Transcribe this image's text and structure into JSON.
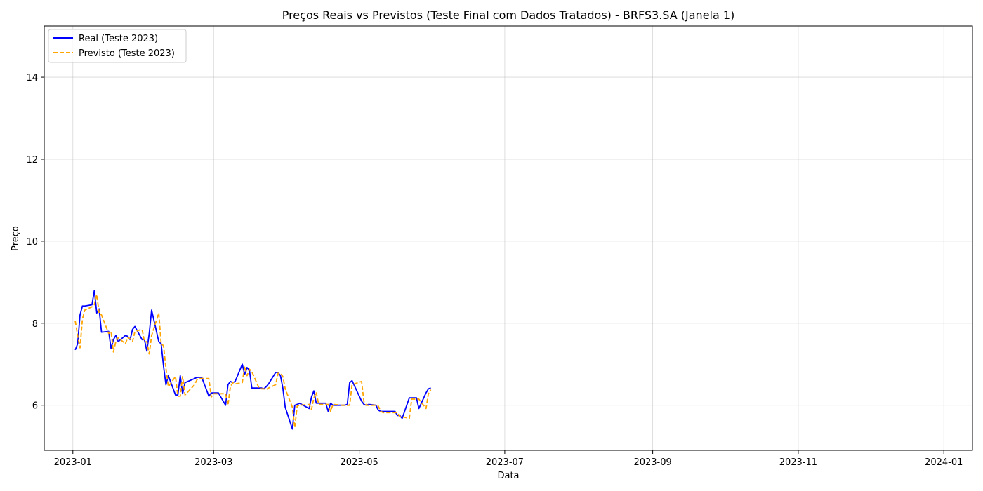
{
  "chart_data": {
    "type": "line",
    "title": "Preços Reais vs Previstos (Teste Final com Dados Tratados) - BRFS3.SA (Janela 1)",
    "xlabel": "Data",
    "ylabel": "Preço",
    "x_ticks": [
      "2023-01",
      "2023-03",
      "2023-05",
      "2023-07",
      "2023-09",
      "2023-11",
      "2024-01"
    ],
    "y_ticks": [
      6,
      8,
      10,
      12,
      14
    ],
    "xlim": [
      "2022-12-20",
      "2024-01-13"
    ],
    "ylim": [
      4.9,
      15.25
    ],
    "grid": true,
    "legend_position": "upper-left",
    "series": [
      {
        "name": "Real (Teste 2023)",
        "color": "#0000ff",
        "style": "solid",
        "points": [
          [
            "2023-01-02",
            7.35
          ],
          [
            "2023-01-03",
            7.5
          ],
          [
            "2023-01-04",
            8.2
          ],
          [
            "2023-01-05",
            8.42
          ],
          [
            "2023-01-06",
            8.42
          ],
          [
            "2023-01-09",
            8.45
          ],
          [
            "2023-01-10",
            8.8
          ],
          [
            "2023-01-11",
            8.25
          ],
          [
            "2023-01-12",
            8.35
          ],
          [
            "2023-01-13",
            7.78
          ],
          [
            "2023-01-16",
            7.8
          ],
          [
            "2023-01-17",
            7.38
          ],
          [
            "2023-01-18",
            7.6
          ],
          [
            "2023-01-19",
            7.7
          ],
          [
            "2023-01-20",
            7.55
          ],
          [
            "2023-01-23",
            7.7
          ],
          [
            "2023-01-24",
            7.68
          ],
          [
            "2023-01-25",
            7.6
          ],
          [
            "2023-01-26",
            7.85
          ],
          [
            "2023-01-27",
            7.92
          ],
          [
            "2023-01-30",
            7.6
          ],
          [
            "2023-01-31",
            7.6
          ],
          [
            "2023-02-01",
            7.32
          ],
          [
            "2023-02-02",
            7.75
          ],
          [
            "2023-02-03",
            8.32
          ],
          [
            "2023-02-06",
            7.55
          ],
          [
            "2023-02-07",
            7.5
          ],
          [
            "2023-02-08",
            6.95
          ],
          [
            "2023-02-09",
            6.5
          ],
          [
            "2023-02-10",
            6.72
          ],
          [
            "2023-02-13",
            6.25
          ],
          [
            "2023-02-14",
            6.25
          ],
          [
            "2023-02-15",
            6.72
          ],
          [
            "2023-02-16",
            6.28
          ],
          [
            "2023-02-17",
            6.55
          ],
          [
            "2023-02-21",
            6.65
          ],
          [
            "2023-02-22",
            6.68
          ],
          [
            "2023-02-23",
            6.68
          ],
          [
            "2023-02-24",
            6.68
          ],
          [
            "2023-02-27",
            6.22
          ],
          [
            "2023-02-28",
            6.3
          ],
          [
            "2023-03-01",
            6.3
          ],
          [
            "2023-03-02",
            6.3
          ],
          [
            "2023-03-03",
            6.3
          ],
          [
            "2023-03-06",
            6.0
          ],
          [
            "2023-03-07",
            6.5
          ],
          [
            "2023-03-08",
            6.58
          ],
          [
            "2023-03-09",
            6.55
          ],
          [
            "2023-03-10",
            6.58
          ],
          [
            "2023-03-13",
            7.0
          ],
          [
            "2023-03-14",
            6.75
          ],
          [
            "2023-03-15",
            6.92
          ],
          [
            "2023-03-16",
            6.85
          ],
          [
            "2023-03-17",
            6.42
          ],
          [
            "2023-03-20",
            6.42
          ],
          [
            "2023-03-21",
            6.42
          ],
          [
            "2023-03-22",
            6.4
          ],
          [
            "2023-03-23",
            6.45
          ],
          [
            "2023-03-24",
            6.52
          ],
          [
            "2023-03-27",
            6.8
          ],
          [
            "2023-03-28",
            6.8
          ],
          [
            "2023-03-29",
            6.72
          ],
          [
            "2023-03-30",
            6.42
          ],
          [
            "2023-03-31",
            5.95
          ],
          [
            "2023-04-03",
            5.42
          ],
          [
            "2023-04-04",
            6.0
          ],
          [
            "2023-04-05",
            6.02
          ],
          [
            "2023-04-06",
            6.05
          ],
          [
            "2023-04-10",
            5.92
          ],
          [
            "2023-04-11",
            6.2
          ],
          [
            "2023-04-12",
            6.35
          ],
          [
            "2023-04-13",
            6.05
          ],
          [
            "2023-04-14",
            6.05
          ],
          [
            "2023-04-17",
            6.05
          ],
          [
            "2023-04-18",
            5.85
          ],
          [
            "2023-04-19",
            6.05
          ],
          [
            "2023-04-20",
            6.0
          ],
          [
            "2023-04-24",
            6.0
          ],
          [
            "2023-04-25",
            6.0
          ],
          [
            "2023-04-26",
            6.02
          ],
          [
            "2023-04-27",
            6.55
          ],
          [
            "2023-04-28",
            6.6
          ],
          [
            "2023-05-02",
            6.1
          ],
          [
            "2023-05-03",
            6.02
          ],
          [
            "2023-05-04",
            6.0
          ],
          [
            "2023-05-05",
            6.02
          ],
          [
            "2023-05-08",
            6.0
          ],
          [
            "2023-05-09",
            5.88
          ],
          [
            "2023-05-10",
            5.85
          ],
          [
            "2023-05-11",
            5.85
          ],
          [
            "2023-05-12",
            5.85
          ],
          [
            "2023-05-15",
            5.85
          ],
          [
            "2023-05-16",
            5.85
          ],
          [
            "2023-05-17",
            5.75
          ],
          [
            "2023-05-18",
            5.75
          ],
          [
            "2023-05-19",
            5.68
          ],
          [
            "2023-05-22",
            6.18
          ],
          [
            "2023-05-23",
            6.18
          ],
          [
            "2023-05-24",
            6.18
          ],
          [
            "2023-05-25",
            6.18
          ],
          [
            "2023-05-26",
            5.92
          ],
          [
            "2023-05-29",
            6.3
          ],
          [
            "2023-05-30",
            6.4
          ],
          [
            "2023-05-31",
            6.42
          ]
        ]
      },
      {
        "name": "Previsto (Teste 2023)",
        "color": "#ffa500",
        "style": "dashed",
        "points": [
          [
            "2023-01-02",
            8.05
          ],
          [
            "2023-01-03",
            7.7
          ],
          [
            "2023-01-04",
            7.4
          ],
          [
            "2023-01-05",
            8.1
          ],
          [
            "2023-01-06",
            8.32
          ],
          [
            "2023-01-09",
            8.4
          ],
          [
            "2023-01-10",
            8.45
          ],
          [
            "2023-01-11",
            8.7
          ],
          [
            "2023-01-12",
            8.25
          ],
          [
            "2023-01-13",
            8.2
          ],
          [
            "2023-01-16",
            7.75
          ],
          [
            "2023-01-17",
            7.8
          ],
          [
            "2023-01-18",
            7.3
          ],
          [
            "2023-01-19",
            7.55
          ],
          [
            "2023-01-20",
            7.65
          ],
          [
            "2023-01-23",
            7.5
          ],
          [
            "2023-01-24",
            7.65
          ],
          [
            "2023-01-25",
            7.62
          ],
          [
            "2023-01-26",
            7.55
          ],
          [
            "2023-01-27",
            7.8
          ],
          [
            "2023-01-30",
            7.85
          ],
          [
            "2023-01-31",
            7.55
          ],
          [
            "2023-02-01",
            7.55
          ],
          [
            "2023-02-02",
            7.25
          ],
          [
            "2023-02-03",
            7.7
          ],
          [
            "2023-02-06",
            8.25
          ],
          [
            "2023-02-07",
            7.5
          ],
          [
            "2023-02-08",
            7.45
          ],
          [
            "2023-02-09",
            6.9
          ],
          [
            "2023-02-10",
            6.45
          ],
          [
            "2023-02-13",
            6.7
          ],
          [
            "2023-02-14",
            6.22
          ],
          [
            "2023-02-15",
            6.22
          ],
          [
            "2023-02-16",
            6.7
          ],
          [
            "2023-02-17",
            6.25
          ],
          [
            "2023-02-21",
            6.5
          ],
          [
            "2023-02-22",
            6.62
          ],
          [
            "2023-02-23",
            6.65
          ],
          [
            "2023-02-24",
            6.65
          ],
          [
            "2023-02-27",
            6.65
          ],
          [
            "2023-02-28",
            6.2
          ],
          [
            "2023-03-01",
            6.28
          ],
          [
            "2023-03-02",
            6.28
          ],
          [
            "2023-03-03",
            6.28
          ],
          [
            "2023-03-06",
            6.28
          ],
          [
            "2023-03-07",
            6.0
          ],
          [
            "2023-03-08",
            6.45
          ],
          [
            "2023-03-09",
            6.55
          ],
          [
            "2023-03-10",
            6.52
          ],
          [
            "2023-03-13",
            6.55
          ],
          [
            "2023-03-14",
            6.95
          ],
          [
            "2023-03-15",
            6.72
          ],
          [
            "2023-03-16",
            6.88
          ],
          [
            "2023-03-17",
            6.82
          ],
          [
            "2023-03-20",
            6.42
          ],
          [
            "2023-03-21",
            6.4
          ],
          [
            "2023-03-22",
            6.4
          ],
          [
            "2023-03-23",
            6.38
          ],
          [
            "2023-03-24",
            6.42
          ],
          [
            "2023-03-27",
            6.5
          ],
          [
            "2023-03-28",
            6.78
          ],
          [
            "2023-03-29",
            6.78
          ],
          [
            "2023-03-30",
            6.7
          ],
          [
            "2023-03-31",
            6.4
          ],
          [
            "2023-04-03",
            5.95
          ],
          [
            "2023-04-04",
            5.45
          ],
          [
            "2023-04-05",
            5.98
          ],
          [
            "2023-04-06",
            6.0
          ],
          [
            "2023-04-10",
            6.02
          ],
          [
            "2023-04-11",
            5.9
          ],
          [
            "2023-04-12",
            6.18
          ],
          [
            "2023-04-13",
            6.32
          ],
          [
            "2023-04-14",
            6.02
          ],
          [
            "2023-04-17",
            6.02
          ],
          [
            "2023-04-18",
            6.02
          ],
          [
            "2023-04-19",
            5.85
          ],
          [
            "2023-04-20",
            6.02
          ],
          [
            "2023-04-24",
            6.0
          ],
          [
            "2023-04-25",
            6.0
          ],
          [
            "2023-04-26",
            6.0
          ],
          [
            "2023-04-27",
            6.0
          ],
          [
            "2023-04-28",
            6.5
          ],
          [
            "2023-05-02",
            6.58
          ],
          [
            "2023-05-03",
            6.08
          ],
          [
            "2023-05-04",
            6.0
          ],
          [
            "2023-05-05",
            6.0
          ],
          [
            "2023-05-08",
            6.0
          ],
          [
            "2023-05-09",
            5.98
          ],
          [
            "2023-05-10",
            5.85
          ],
          [
            "2023-05-11",
            5.82
          ],
          [
            "2023-05-12",
            5.82
          ],
          [
            "2023-05-15",
            5.82
          ],
          [
            "2023-05-16",
            5.82
          ],
          [
            "2023-05-17",
            5.82
          ],
          [
            "2023-05-18",
            5.72
          ],
          [
            "2023-05-19",
            5.72
          ],
          [
            "2023-05-22",
            5.68
          ],
          [
            "2023-05-23",
            6.15
          ],
          [
            "2023-05-24",
            6.15
          ],
          [
            "2023-05-25",
            6.15
          ],
          [
            "2023-05-26",
            6.15
          ],
          [
            "2023-05-29",
            5.92
          ],
          [
            "2023-05-30",
            6.28
          ],
          [
            "2023-05-31",
            6.38
          ]
        ]
      }
    ]
  }
}
